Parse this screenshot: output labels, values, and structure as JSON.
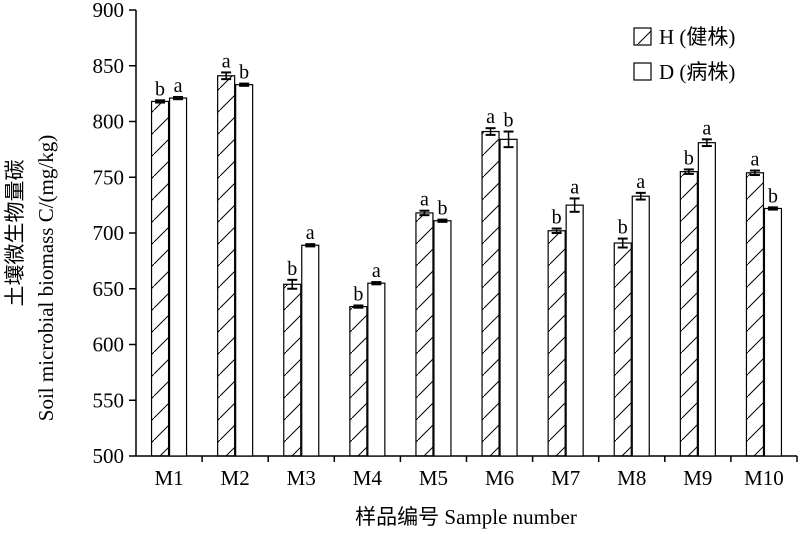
{
  "chart_data": {
    "type": "bar",
    "title": "",
    "xlabel": "样品编号 Sample number",
    "ylabel": "土壤微生物量碳 Soil microbial biomass C/(mg/kg)",
    "ylim": [
      500,
      900
    ],
    "yticks": [
      500,
      550,
      600,
      650,
      700,
      750,
      800,
      850,
      900
    ],
    "grid": false,
    "legend_position": "top-right",
    "categories": [
      "M1",
      "M2",
      "M3",
      "M4",
      "M5",
      "M6",
      "M7",
      "M8",
      "M9",
      "M10"
    ],
    "series": [
      {
        "name": "H (健株)",
        "pattern": "hatched",
        "values": [
          818,
          841,
          654,
          634,
          718,
          791,
          702,
          691,
          755,
          754
        ],
        "errors": [
          1,
          3,
          4,
          1,
          2,
          3,
          2,
          4,
          2,
          2
        ],
        "significance": [
          "b",
          "a",
          "b",
          "b",
          "a",
          "a",
          "b",
          "b",
          "b",
          "a"
        ]
      },
      {
        "name": "D (病株)",
        "pattern": "open",
        "values": [
          821,
          833,
          689,
          655,
          711,
          784,
          725,
          733,
          781,
          722
        ],
        "errors": [
          1,
          1,
          1,
          1,
          1,
          7,
          6,
          3,
          3,
          1
        ],
        "significance": [
          "a",
          "b",
          "a",
          "a",
          "b",
          "b",
          "a",
          "a",
          "a",
          "b"
        ]
      }
    ]
  },
  "colors": {
    "axis": "#000000",
    "bar_fill": "#ffffff",
    "bar_stroke": "#000000"
  }
}
